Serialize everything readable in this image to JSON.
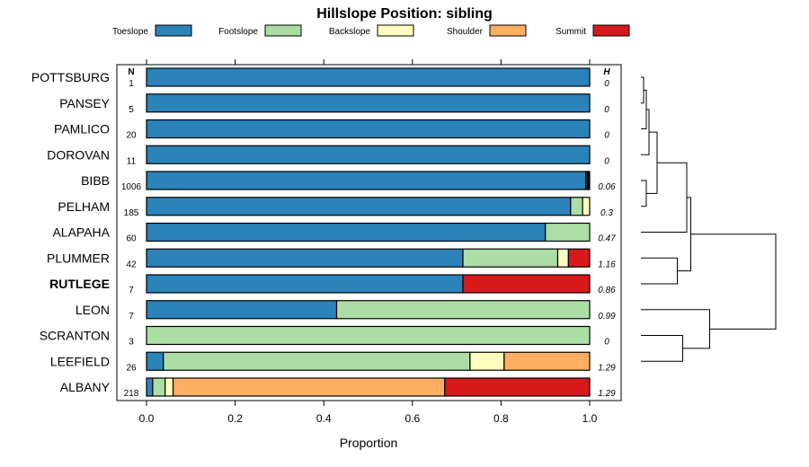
{
  "chart_data": {
    "type": "bar",
    "stacked": true,
    "orientation": "horizontal",
    "title": "Hillslope Position: sibling",
    "xlabel": "Proportion",
    "xlim": [
      0,
      1
    ],
    "xticks": [
      "0.0",
      "0.2",
      "0.4",
      "0.6",
      "0.8",
      "1.0"
    ],
    "legend_position": "top",
    "n_header": "N",
    "h_header": "H",
    "series": [
      {
        "name": "Toeslope",
        "color": "#2B83BA"
      },
      {
        "name": "Footslope",
        "color": "#ABDDA4"
      },
      {
        "name": "Backslope",
        "color": "#FFFFBF"
      },
      {
        "name": "Shoulder",
        "color": "#FDAE61"
      },
      {
        "name": "Summit",
        "color": "#D7191C"
      }
    ],
    "rows": [
      {
        "name": "POTTSBURG",
        "n": "1",
        "h": "0",
        "bold": false,
        "values": [
          1,
          0,
          0,
          0,
          0
        ]
      },
      {
        "name": "PANSEY",
        "n": "5",
        "h": "0",
        "bold": false,
        "values": [
          1,
          0,
          0,
          0,
          0
        ]
      },
      {
        "name": "PAMLICO",
        "n": "20",
        "h": "0",
        "bold": false,
        "values": [
          1,
          0,
          0,
          0,
          0
        ]
      },
      {
        "name": "DOROVAN",
        "n": "11",
        "h": "0",
        "bold": false,
        "values": [
          1,
          0,
          0,
          0,
          0
        ]
      },
      {
        "name": "BIBB",
        "n": "1006",
        "h": "0.06",
        "bold": false,
        "values": [
          0.991,
          0.003,
          0.002,
          0.002,
          0.002
        ]
      },
      {
        "name": "PELHAM",
        "n": "185",
        "h": "0.3",
        "bold": false,
        "values": [
          0.957,
          0.027,
          0.016,
          0,
          0
        ]
      },
      {
        "name": "ALAPAHA",
        "n": "60",
        "h": "0.47",
        "bold": false,
        "values": [
          0.9,
          0.1,
          0,
          0,
          0
        ]
      },
      {
        "name": "PLUMMER",
        "n": "42",
        "h": "1.16",
        "bold": false,
        "values": [
          0.714,
          0.214,
          0.024,
          0,
          0.048
        ]
      },
      {
        "name": "RUTLEGE",
        "n": "7",
        "h": "0.86",
        "bold": true,
        "values": [
          0.714,
          0,
          0,
          0,
          0.286
        ]
      },
      {
        "name": "LEON",
        "n": "7",
        "h": "0.99",
        "bold": false,
        "values": [
          0.429,
          0.571,
          0,
          0,
          0
        ]
      },
      {
        "name": "SCRANTON",
        "n": "3",
        "h": "0",
        "bold": false,
        "values": [
          0,
          1,
          0,
          0,
          0
        ]
      },
      {
        "name": "LEEFIELD",
        "n": "26",
        "h": "1.29",
        "bold": false,
        "values": [
          0.038,
          0.692,
          0.077,
          0.193,
          0
        ]
      },
      {
        "name": "ALBANY",
        "n": "218",
        "h": "1.29",
        "bold": false,
        "values": [
          0.014,
          0.028,
          0.018,
          0.613,
          0.327
        ]
      }
    ],
    "dendrogram": {
      "description": "hierarchical clustering of rows (leaf indices 0-12)",
      "merges": [
        {
          "a": 0,
          "b": 1,
          "height": 0.02
        },
        {
          "a": "m0",
          "b": 2,
          "height": 0.04
        },
        {
          "a": "m1",
          "b": 3,
          "height": 0.06
        },
        {
          "a": 4,
          "b": 5,
          "height": 0.04
        },
        {
          "a": "m2",
          "b": "m3",
          "height": 0.12
        },
        {
          "a": "m4",
          "b": 6,
          "height": 0.34
        },
        {
          "a": 7,
          "b": 8,
          "height": 0.27
        },
        {
          "a": "m5",
          "b": "m6",
          "height": 0.37
        },
        {
          "a": 10,
          "b": 11,
          "height": 0.31
        },
        {
          "a": 9,
          "b": "m8",
          "height": 0.51
        },
        {
          "a": "m7",
          "b": "m9",
          "height": 1.0
        }
      ]
    }
  }
}
